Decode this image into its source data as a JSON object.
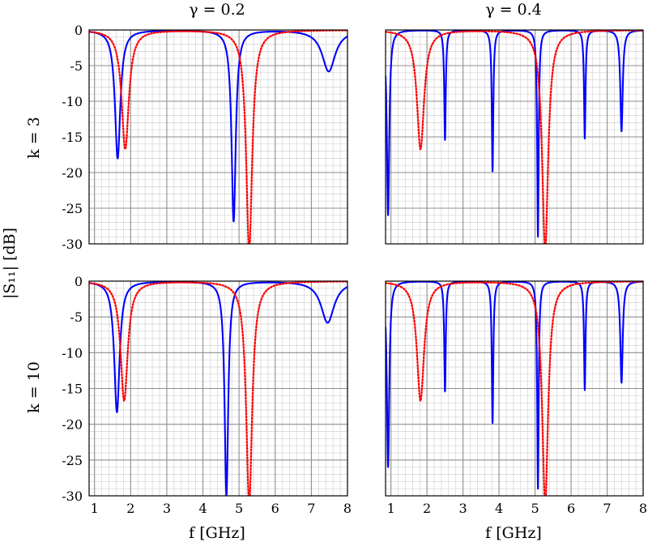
{
  "chart_data": [
    {
      "type": "line",
      "row": "k = 3",
      "column": "γ = 0.2",
      "xlim": [
        0.85,
        8
      ],
      "ylim": [
        -30,
        0
      ],
      "grid": "major and minor",
      "series": [
        {
          "color": "#0000ff",
          "style": "solid",
          "resonances": [
            {
              "f": 1.64,
              "min": -18,
              "width": 0.09
            },
            {
              "f": 4.85,
              "min": -26.8,
              "width": 0.07
            },
            {
              "f": 7.48,
              "min": -5.8,
              "width": 0.22
            }
          ]
        },
        {
          "color": "#ff0000",
          "style": "dotted",
          "resonances": [
            {
              "f": 1.85,
              "min": -16.7,
              "width": 0.12
            },
            {
              "f": 5.28,
              "min": -31,
              "width": 0.1
            }
          ]
        }
      ]
    },
    {
      "type": "line",
      "row": "k = 3",
      "column": "γ = 0.4",
      "xlim": [
        0.85,
        8
      ],
      "ylim": [
        -30,
        0
      ],
      "grid": "major and minor",
      "series": [
        {
          "color": "#0000ff",
          "style": "solid",
          "resonances": [
            {
              "f": 0.92,
              "min": -26,
              "width": 0.04
            },
            {
              "f": 2.5,
              "min": -15.4,
              "width": 0.025
            },
            {
              "f": 3.82,
              "min": -19.8,
              "width": 0.025
            },
            {
              "f": 5.08,
              "min": -29,
              "width": 0.025
            },
            {
              "f": 6.38,
              "min": -15.2,
              "width": 0.025
            },
            {
              "f": 7.4,
              "min": -14.2,
              "width": 0.04
            }
          ]
        },
        {
          "color": "#ff0000",
          "style": "dotted",
          "resonances": [
            {
              "f": 1.82,
              "min": -16.7,
              "width": 0.12
            },
            {
              "f": 5.28,
              "min": -31,
              "width": 0.1
            }
          ]
        }
      ]
    },
    {
      "type": "line",
      "row": "k = 10",
      "column": "γ = 0.2",
      "xlim": [
        0.85,
        8
      ],
      "ylim": [
        -30,
        0
      ],
      "grid": "major and minor",
      "series": [
        {
          "color": "#0000ff",
          "style": "solid",
          "resonances": [
            {
              "f": 1.62,
              "min": -18.3,
              "width": 0.09
            },
            {
              "f": 4.65,
              "min": -30,
              "width": 0.06
            },
            {
              "f": 7.45,
              "min": -5.8,
              "width": 0.22
            }
          ]
        },
        {
          "color": "#ff0000",
          "style": "dotted",
          "resonances": [
            {
              "f": 1.82,
              "min": -16.7,
              "width": 0.12
            },
            {
              "f": 5.28,
              "min": -31,
              "width": 0.1
            }
          ]
        }
      ]
    },
    {
      "type": "line",
      "row": "k = 10",
      "column": "γ = 0.4",
      "xlim": [
        0.85,
        8
      ],
      "ylim": [
        -30,
        0
      ],
      "grid": "major and minor",
      "series": [
        {
          "color": "#0000ff",
          "style": "solid",
          "resonances": [
            {
              "f": 0.92,
              "min": -26,
              "width": 0.04
            },
            {
              "f": 2.5,
              "min": -15.4,
              "width": 0.025
            },
            {
              "f": 3.82,
              "min": -19.8,
              "width": 0.025
            },
            {
              "f": 5.08,
              "min": -29,
              "width": 0.025
            },
            {
              "f": 6.38,
              "min": -15.2,
              "width": 0.025
            },
            {
              "f": 7.4,
              "min": -14.2,
              "width": 0.04
            }
          ]
        },
        {
          "color": "#ff0000",
          "style": "dotted",
          "resonances": [
            {
              "f": 1.82,
              "min": -16.7,
              "width": 0.12
            },
            {
              "f": 5.28,
              "min": -31,
              "width": 0.1
            }
          ]
        }
      ]
    }
  ],
  "labels": {
    "col_titles": [
      "γ = 0.2",
      "γ = 0.4"
    ],
    "row_titles": [
      "k = 3",
      "k = 10"
    ],
    "ylabel": "|S₁₁| [dB]",
    "xlabel": "f [GHz]",
    "y_ticks": [
      "0",
      "-5",
      "-10",
      "-15",
      "-20",
      "-25",
      "-30"
    ],
    "x_ticks": [
      "1",
      "2",
      "3",
      "4",
      "5",
      "6",
      "7",
      "8"
    ]
  }
}
